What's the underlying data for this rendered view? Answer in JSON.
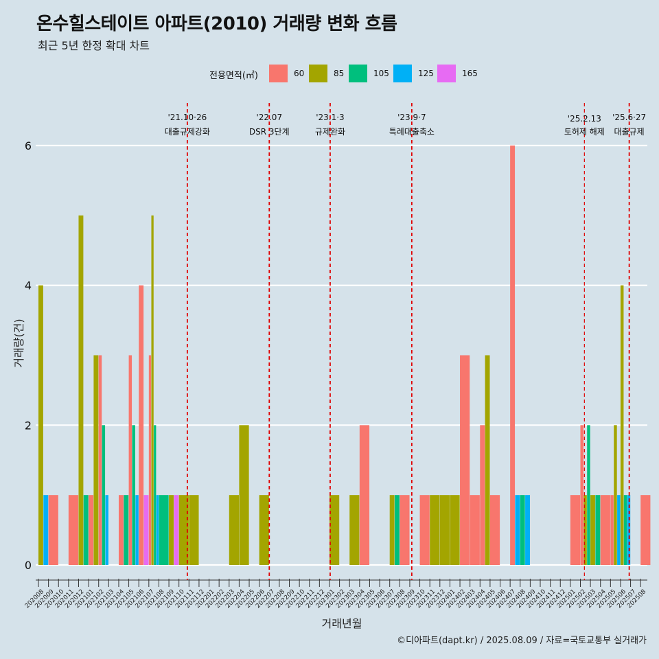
{
  "header": {
    "title": "온수힐스테이트 아파트(2010) 거래량 변화 흐름",
    "subtitle": "최근 5년 한정 확대 차트"
  },
  "caption": "©디아파트(dapt.kr) / 2025.08.09 / 자료=국토교통부 실거래가",
  "chart_data": {
    "type": "bar",
    "xlabel": "거래년월",
    "ylabel": "거래량(건)",
    "ylim": [
      0,
      6
    ],
    "yticks": [
      0,
      2,
      4,
      6
    ],
    "grid": "horizontal",
    "legend_placement": "top",
    "legend_title": "전용면적(㎡)",
    "categories": [
      "202008",
      "202009",
      "202010",
      "202011",
      "202012",
      "202101",
      "202102",
      "202103",
      "202104",
      "202105",
      "202106",
      "202107",
      "202108",
      "202109",
      "202110",
      "202111",
      "202112",
      "202201",
      "202202",
      "202203",
      "202204",
      "202205",
      "202206",
      "202207",
      "202208",
      "202209",
      "202210",
      "202211",
      "202212",
      "202301",
      "202302",
      "202303",
      "202304",
      "202305",
      "202306",
      "202307",
      "202308",
      "202309",
      "202310",
      "202311",
      "202312",
      "202401",
      "202402",
      "202403",
      "202404",
      "202405",
      "202406",
      "202407",
      "202408",
      "202409",
      "202410",
      "202411",
      "202412",
      "202501",
      "202502",
      "202503",
      "202504",
      "202505",
      "202506",
      "202507",
      "202508"
    ],
    "series": [
      {
        "name": "60",
        "color": "#F8766D",
        "values": [
          0,
          1,
          0,
          1,
          0,
          1,
          3,
          0,
          1,
          3,
          4,
          3,
          0,
          0,
          0,
          0,
          0,
          0,
          0,
          0,
          0,
          0,
          0,
          0,
          0,
          0,
          0,
          0,
          0,
          0,
          0,
          0,
          2,
          0,
          0,
          0,
          1,
          0,
          1,
          0,
          0,
          0,
          3,
          1,
          2,
          1,
          0,
          6,
          0,
          0,
          0,
          0,
          0,
          1,
          2,
          0,
          1,
          1,
          0,
          0,
          1
        ]
      },
      {
        "name": "85",
        "color": "#A3A500",
        "values": [
          4,
          0,
          0,
          0,
          5,
          3,
          0,
          0,
          0,
          0,
          0,
          5,
          0,
          1,
          1,
          1,
          0,
          0,
          0,
          1,
          2,
          0,
          1,
          0,
          0,
          0,
          0,
          0,
          0,
          1,
          0,
          1,
          0,
          0,
          0,
          1,
          0,
          0,
          0,
          1,
          1,
          1,
          0,
          0,
          3,
          0,
          0,
          0,
          0,
          0,
          0,
          0,
          0,
          0,
          1,
          1,
          0,
          2,
          4,
          0,
          0
        ]
      },
      {
        "name": "105",
        "color": "#00BF7D",
        "values": [
          0,
          0,
          0,
          0,
          1,
          0,
          2,
          0,
          1,
          2,
          0,
          2,
          1,
          0,
          0,
          0,
          0,
          0,
          0,
          0,
          0,
          0,
          0,
          0,
          0,
          0,
          0,
          0,
          0,
          0,
          0,
          0,
          0,
          0,
          0,
          1,
          0,
          0,
          0,
          0,
          0,
          0,
          0,
          0,
          0,
          0,
          0,
          0,
          1,
          0,
          0,
          0,
          0,
          0,
          2,
          1,
          0,
          0,
          1,
          0,
          0
        ]
      },
      {
        "name": "125",
        "color": "#00B0F6",
        "values": [
          1,
          0,
          0,
          0,
          0,
          0,
          1,
          0,
          0,
          1,
          0,
          1,
          0,
          0,
          0,
          0,
          0,
          0,
          0,
          0,
          0,
          0,
          0,
          0,
          0,
          0,
          0,
          0,
          0,
          0,
          0,
          0,
          0,
          0,
          0,
          0,
          0,
          0,
          0,
          0,
          0,
          0,
          0,
          0,
          0,
          0,
          0,
          1,
          1,
          0,
          0,
          0,
          0,
          0,
          0,
          0,
          0,
          1,
          1,
          0,
          0
        ]
      },
      {
        "name": "165",
        "color": "#E76BF3",
        "values": [
          0,
          0,
          0,
          0,
          0,
          0,
          0,
          0,
          0,
          0,
          1,
          0,
          0,
          1,
          0,
          0,
          0,
          0,
          0,
          0,
          0,
          0,
          0,
          0,
          0,
          0,
          0,
          0,
          0,
          0,
          0,
          0,
          0,
          0,
          0,
          0,
          0,
          0,
          0,
          0,
          0,
          0,
          0,
          0,
          0,
          0,
          0,
          0,
          0,
          0,
          0,
          0,
          0,
          0,
          0,
          0,
          0,
          0,
          0,
          0,
          0
        ]
      }
    ],
    "events": [
      {
        "date": "'21.10·26",
        "label": "대출규제강화",
        "x": "2021-10-26"
      },
      {
        "date": "'22.07",
        "label": "DSR 3단계",
        "x": "2022-07-01"
      },
      {
        "date": "'23.1·3",
        "label": "규제완화",
        "x": "2023-01-03"
      },
      {
        "date": "'23.9·7",
        "label": "특례대출축소",
        "x": "2023-09-07"
      },
      {
        "date": "'25.2.13",
        "label": "토허제 해제",
        "x": "2025-02-13"
      },
      {
        "date": "'25.6·27",
        "label": "대출규제",
        "x": "2025-06-27"
      }
    ],
    "event_line_color": "#e00000"
  }
}
